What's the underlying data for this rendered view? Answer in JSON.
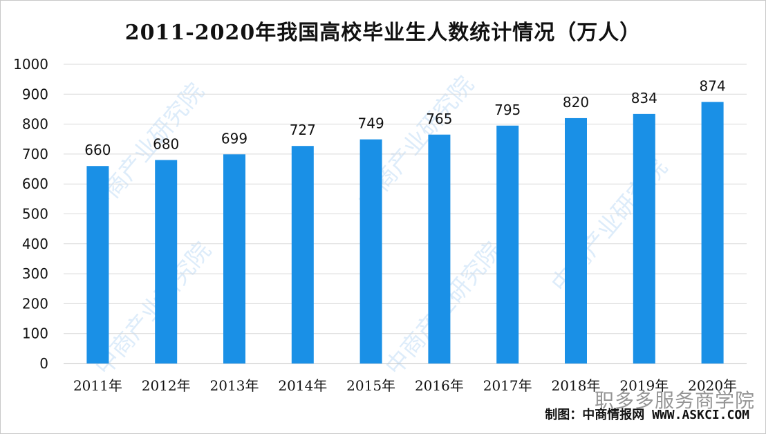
{
  "chart_data": {
    "type": "bar",
    "title": "2011-2020年我国高校毕业生人数统计情况（万人）",
    "categories": [
      "2011年",
      "2012年",
      "2013年",
      "2014年",
      "2015年",
      "2016年",
      "2017年",
      "2018年",
      "2019年",
      "2020年"
    ],
    "values": [
      660,
      680,
      699,
      727,
      749,
      765,
      795,
      820,
      834,
      874
    ],
    "ylim": [
      0,
      1000
    ],
    "yticks": [
      0,
      100,
      200,
      300,
      400,
      500,
      600,
      700,
      800,
      900,
      1000
    ],
    "xlabel": "",
    "ylabel": "",
    "grid": true,
    "bar_color": "#1a90e6",
    "data_labels": true
  },
  "source": "制图：中商情报网 WWW.ASKCI.COM",
  "watermark": "中商产业研究院",
  "overlay_watermark": "职多多服务商学院"
}
